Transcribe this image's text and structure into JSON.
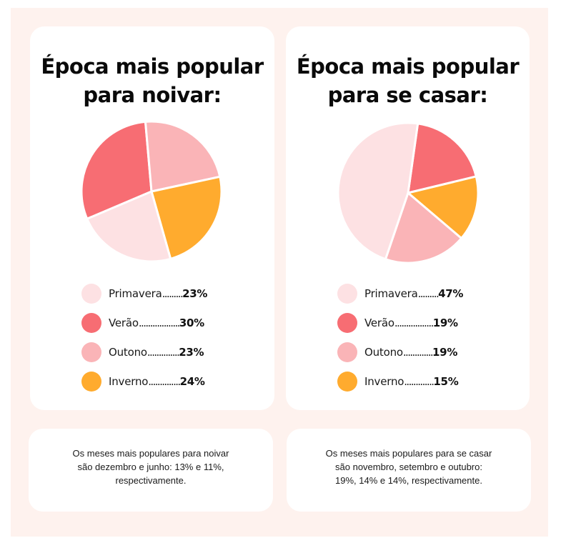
{
  "colors": {
    "background_panel": "#fef2ee",
    "card": "#ffffff",
    "primavera": "#fde1e3",
    "verao": "#f76d73",
    "outono": "#fab4b7",
    "inverno": "#ffab2e"
  },
  "chart_data": [
    {
      "type": "pie",
      "title": "Época mais popular para noivar:",
      "title_lines": [
        "Época mais popular",
        "para noivar:"
      ],
      "categories": [
        "Primavera",
        "Verão",
        "Outono",
        "Inverno"
      ],
      "values": [
        23,
        30,
        23,
        24
      ],
      "unit": "%",
      "legend": [
        {
          "label": "Primavera",
          "dots": ".........",
          "value": "23%",
          "color": "#fde1e3"
        },
        {
          "label": "Verão",
          "dots": "..................",
          "value": "30%",
          "color": "#f76d73"
        },
        {
          "label": "Outono",
          "dots": "..............",
          "value": "23%",
          "color": "#fab4b7"
        },
        {
          "label": "Inverno",
          "dots": "..............",
          "value": "24%",
          "color": "#ffab2e"
        }
      ],
      "legend_placement": "bottom",
      "slice_order": [
        "Verão",
        "Outono",
        "Inverno",
        "Primavera"
      ],
      "start_slice": "Verão",
      "start_angle_deg": -113
    },
    {
      "type": "pie",
      "title": "Época mais popular para se casar:",
      "title_lines": [
        "Época mais popular",
        "para se casar:"
      ],
      "categories": [
        "Primavera",
        "Verão",
        "Outono",
        "Inverno"
      ],
      "values": [
        47,
        19,
        19,
        15
      ],
      "unit": "%",
      "legend": [
        {
          "label": "Primavera",
          "dots": ".........",
          "value": "47%",
          "color": "#fde1e3"
        },
        {
          "label": "Verão",
          "dots": ".................",
          "value": "19%",
          "color": "#f76d73"
        },
        {
          "label": "Outono",
          "dots": ".............",
          "value": "19%",
          "color": "#fab4b7"
        },
        {
          "label": "Inverno",
          "dots": ".............",
          "value": "15%",
          "color": "#ffab2e"
        }
      ],
      "legend_placement": "bottom",
      "slice_order": [
        "Verão",
        "Inverno",
        "Outono",
        "Primavera"
      ],
      "start_slice": "Verão",
      "start_angle_deg": 8
    }
  ],
  "notes": [
    {
      "lines": [
        "Os meses mais populares para noivar",
        "são dezembro e junho: 13% e 11%,",
        "respectivamente."
      ]
    },
    {
      "lines": [
        "Os meses mais populares para se casar",
        "são novembro, setembro e outubro:",
        "19%, 14% e 14%, respectivamente."
      ]
    }
  ]
}
